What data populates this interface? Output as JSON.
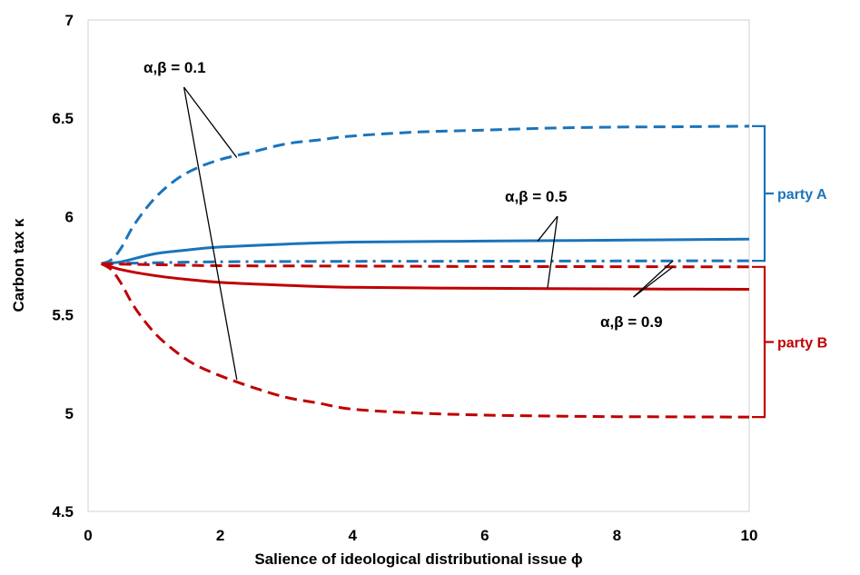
{
  "chart_data": {
    "type": "line",
    "title": "",
    "xlabel": "Salience of ideological distributional issue ϕ",
    "ylabel": "Carbon tax κ",
    "xlim": [
      0,
      10
    ],
    "ylim": [
      4.5,
      7
    ],
    "xticks": [
      "0",
      "2",
      "4",
      "6",
      "8",
      "10"
    ],
    "yticks": [
      "4.5",
      "5",
      "5.5",
      "6",
      "6.5",
      "7"
    ],
    "grid": false,
    "series": [
      {
        "party": "A",
        "alpha_beta": "0.1",
        "style": "dashed",
        "color": "#1a74bb",
        "x": [
          0.2,
          0.35,
          0.5,
          0.7,
          1.0,
          1.3,
          1.6,
          2.0,
          2.5,
          3.0,
          3.5,
          4.0,
          5.0,
          6.0,
          7.0,
          8.0,
          9.0,
          10.0
        ],
        "y": [
          5.76,
          5.78,
          5.84,
          5.96,
          6.09,
          6.18,
          6.24,
          6.29,
          6.33,
          6.37,
          6.39,
          6.41,
          6.43,
          6.44,
          6.45,
          6.455,
          6.457,
          6.46
        ]
      },
      {
        "party": "A",
        "alpha_beta": "0.5",
        "style": "solid",
        "color": "#1a74bb",
        "x": [
          0.2,
          0.5,
          1.0,
          1.5,
          2.0,
          3.0,
          4.0,
          6.0,
          8.0,
          10.0
        ],
        "y": [
          5.76,
          5.77,
          5.81,
          5.83,
          5.845,
          5.86,
          5.87,
          5.875,
          5.88,
          5.885
        ]
      },
      {
        "party": "A",
        "alpha_beta": "0.9",
        "style": "dashdot",
        "color": "#1a74bb",
        "x": [
          0.2,
          1.0,
          2.0,
          4.0,
          6.0,
          8.0,
          10.0
        ],
        "y": [
          5.76,
          5.765,
          5.77,
          5.772,
          5.773,
          5.774,
          5.775
        ]
      },
      {
        "party": "B",
        "alpha_beta": "0.9",
        "style": "dashed",
        "color": "#c00000",
        "x": [
          0.2,
          1.0,
          2.0,
          4.0,
          6.0,
          8.0,
          10.0
        ],
        "y": [
          5.76,
          5.755,
          5.75,
          5.748,
          5.746,
          5.745,
          5.744
        ]
      },
      {
        "party": "B",
        "alpha_beta": "0.5",
        "style": "solid",
        "color": "#c00000",
        "x": [
          0.2,
          0.5,
          1.0,
          1.5,
          2.0,
          3.0,
          4.0,
          6.0,
          8.0,
          10.0
        ],
        "y": [
          5.76,
          5.73,
          5.7,
          5.68,
          5.665,
          5.65,
          5.64,
          5.635,
          5.632,
          5.63
        ]
      },
      {
        "party": "B",
        "alpha_beta": "0.1",
        "style": "dashed",
        "color": "#c00000",
        "x": [
          0.2,
          0.35,
          0.5,
          0.7,
          1.0,
          1.3,
          1.6,
          2.0,
          2.5,
          3.0,
          3.5,
          4.0,
          5.0,
          6.0,
          7.0,
          8.0,
          9.0,
          10.0
        ],
        "y": [
          5.76,
          5.73,
          5.66,
          5.54,
          5.41,
          5.32,
          5.25,
          5.19,
          5.13,
          5.08,
          5.05,
          5.02,
          5.0,
          4.99,
          4.985,
          4.982,
          4.981,
          4.98
        ]
      }
    ],
    "annotations": [
      {
        "text": "α,β = 0.1"
      },
      {
        "text": "α,β = 0.5"
      },
      {
        "text": "α,β = 0.9"
      }
    ],
    "groups": [
      {
        "label": "party A",
        "color": "#1a74bb",
        "y_from": 5.775,
        "y_to": 6.46
      },
      {
        "label": "party B",
        "color": "#c00000",
        "y_from": 4.98,
        "y_to": 5.744
      }
    ]
  }
}
